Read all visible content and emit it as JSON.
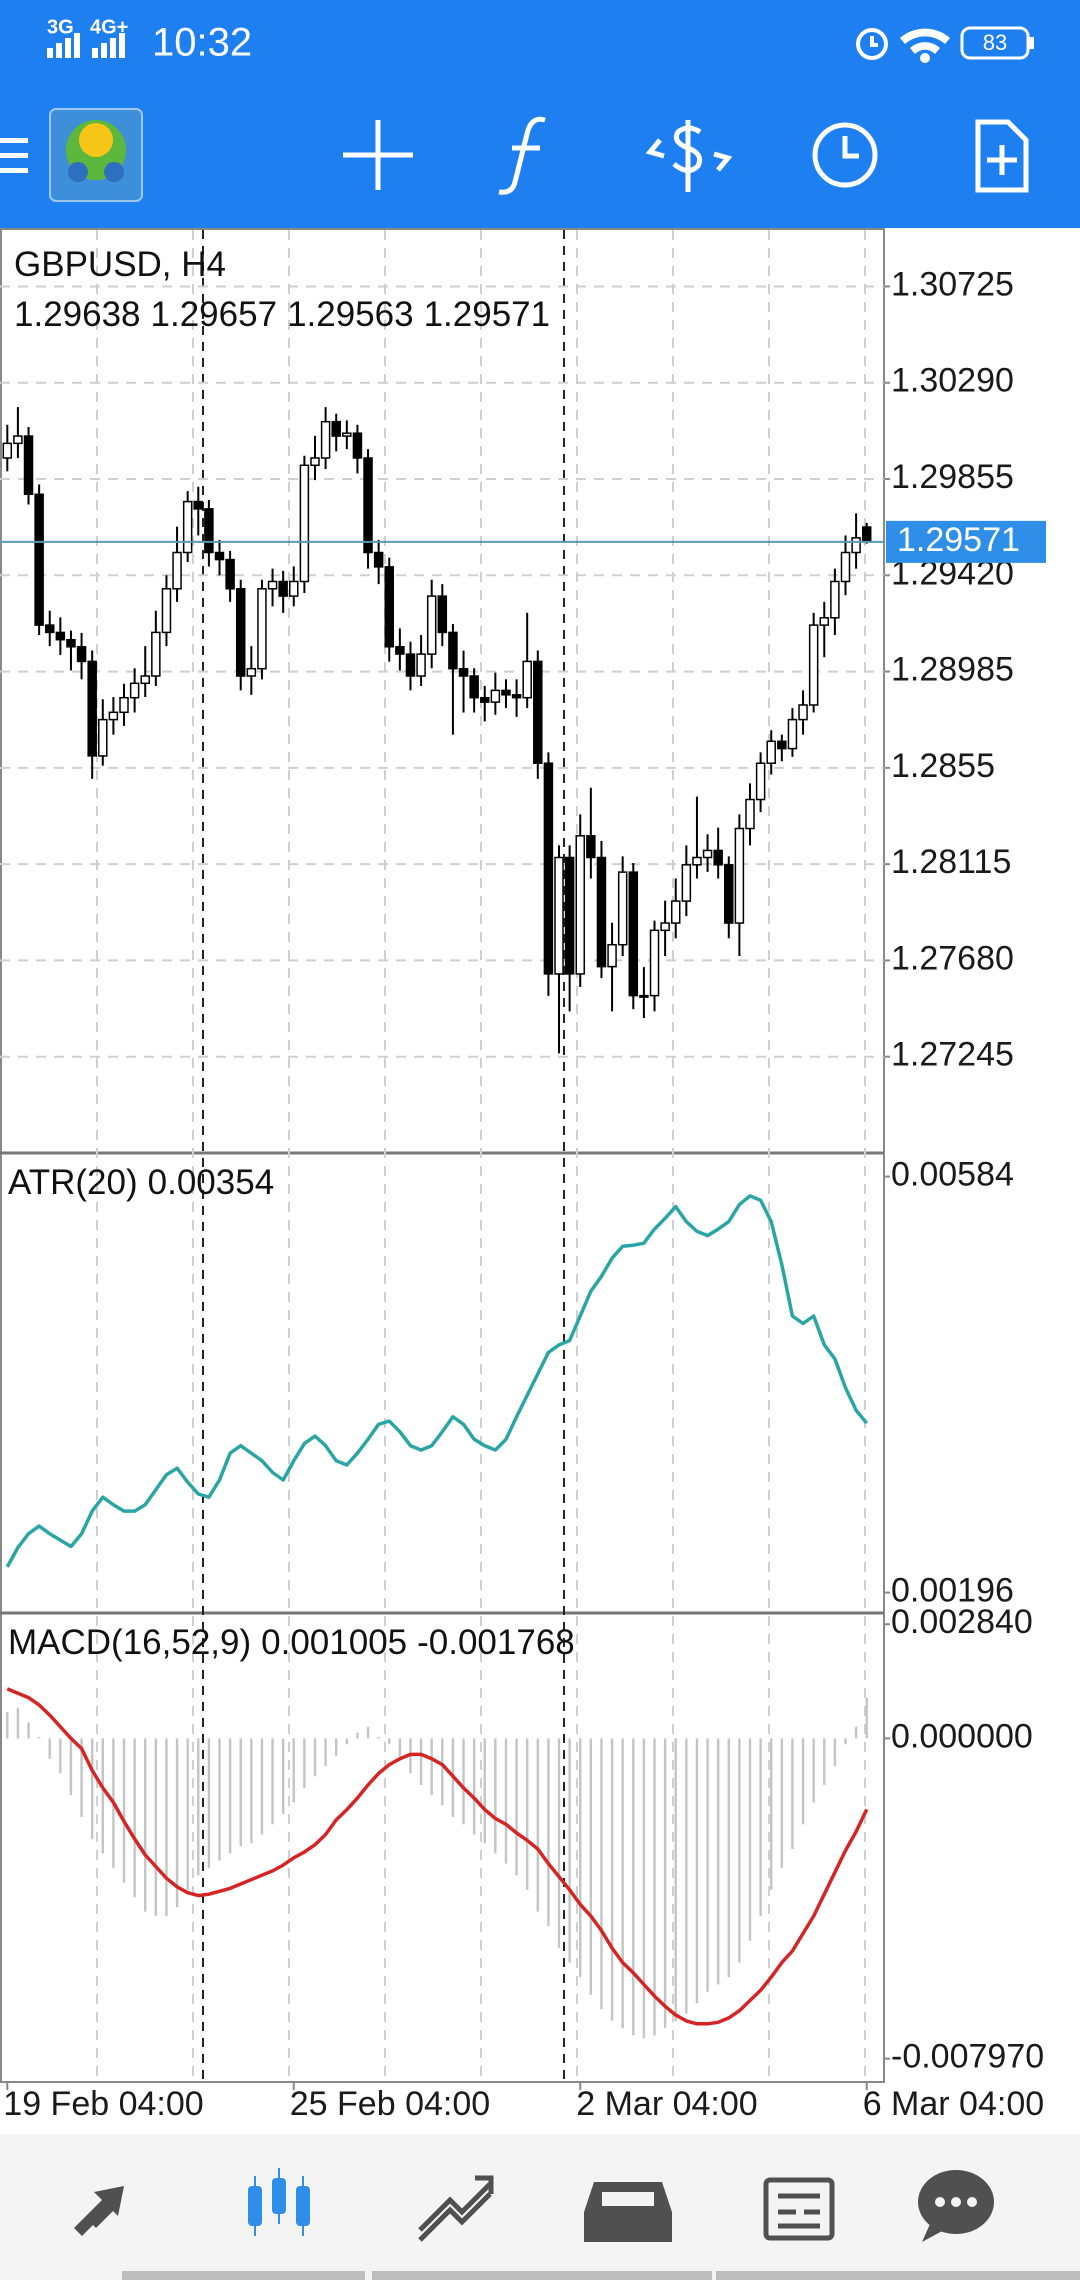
{
  "status_bar": {
    "network": [
      "3G",
      "4G+"
    ],
    "time": "10:32",
    "battery": "83"
  },
  "chart_data": [
    {
      "type": "candlestick",
      "title": "GBPUSD, H4",
      "categories": [
        "19 Feb 04:00",
        null,
        null,
        null,
        null,
        null,
        null,
        null,
        null,
        null,
        null,
        null,
        null,
        null,
        null,
        null,
        null,
        null,
        null,
        null,
        null,
        null,
        null,
        null,
        null,
        null,
        null,
        "25 Feb 04:00",
        null,
        null,
        null,
        null,
        null,
        null,
        null,
        null,
        null,
        null,
        null,
        null,
        null,
        null,
        null,
        null,
        null,
        null,
        null,
        null,
        null,
        null,
        null,
        null,
        null,
        null,
        "2 Mar 04:00",
        null,
        null,
        null,
        null,
        null,
        null,
        null,
        null,
        null,
        null,
        null,
        null,
        null,
        null,
        null,
        null,
        null,
        null,
        null,
        null,
        null,
        null,
        null,
        null,
        null,
        null,
        "6 Mar 04:00"
      ],
      "open": [
        1.2995,
        1.30016,
        1.30049,
        1.29786,
        1.29195,
        1.29162,
        1.29129,
        1.29097,
        1.29031,
        1.28604,
        1.28768,
        1.28801,
        1.28867,
        1.28932,
        1.28965,
        1.29162,
        1.29359,
        1.29523,
        1.29753,
        1.2972,
        1.29523,
        1.29491,
        1.29359,
        1.28965,
        1.28998,
        1.29359,
        1.29392,
        1.29326,
        1.29392,
        1.29917,
        1.2995,
        1.30114,
        1.30049,
        1.30062,
        1.2995,
        1.29523,
        1.29458,
        1.29097,
        1.29064,
        1.28965,
        1.29064,
        1.29326,
        1.29162,
        1.28998,
        1.28965,
        1.28867,
        1.28847,
        1.289,
        1.2888,
        1.28867,
        1.29031,
        1.28571,
        1.27619,
        1.28145,
        1.27619,
        1.28243,
        1.28145,
        1.27652,
        1.27751,
        1.28079,
        1.27521,
        1.27521,
        1.27816,
        1.27849,
        1.27948,
        1.28112,
        1.28145,
        1.28177,
        1.28112,
        1.27849,
        1.28276,
        1.28407,
        1.28571,
        1.2867,
        1.28637,
        1.28768,
        1.28834,
        1.29195,
        1.29228,
        1.29392,
        1.29523,
        1.29638
      ],
      "high": [
        1.301,
        1.3018,
        1.3009,
        1.2983,
        1.2926,
        1.2923,
        1.2917,
        1.2916,
        1.2908,
        1.2886,
        1.2887,
        1.2893,
        1.29,
        1.291,
        1.2926,
        1.2942,
        1.2964,
        1.298,
        1.2982,
        1.2976,
        1.2958,
        1.2953,
        1.294,
        1.291,
        1.294,
        1.2945,
        1.2944,
        1.2946,
        1.2996,
        1.3005,
        1.3018,
        1.3015,
        1.3012,
        1.301,
        1.2999,
        1.2958,
        1.295,
        1.2918,
        1.2912,
        1.2915,
        1.294,
        1.2938,
        1.292,
        1.2908,
        1.29,
        1.2892,
        1.2898,
        1.2895,
        1.2895,
        1.2925,
        1.2908,
        1.2862,
        1.282,
        1.282,
        1.2834,
        1.2846,
        1.2822,
        1.2785,
        1.2815,
        1.2812,
        1.2765,
        1.2786,
        1.2795,
        1.2805,
        1.282,
        1.2842,
        1.2825,
        1.2828,
        1.2815,
        1.2834,
        1.2848,
        1.2862,
        1.2872,
        1.287,
        1.2882,
        1.289,
        1.2925,
        1.293,
        1.2945,
        1.296,
        1.297,
        1.29657
      ],
      "low": [
        1.2989,
        1.2995,
        1.2974,
        1.2915,
        1.291,
        1.2906,
        1.2899,
        1.2895,
        1.285,
        1.2856,
        1.287,
        1.2874,
        1.288,
        1.2887,
        1.2892,
        1.291,
        1.293,
        1.2948,
        1.296,
        1.2946,
        1.2942,
        1.293,
        1.289,
        1.2888,
        1.2895,
        1.2928,
        1.2925,
        1.2928,
        1.2934,
        1.2985,
        1.299,
        1.2998,
        1.2999,
        1.2988,
        1.2945,
        1.2938,
        1.2903,
        1.2899,
        1.289,
        1.2892,
        1.29,
        1.291,
        1.287,
        1.288,
        1.288,
        1.2876,
        1.2879,
        1.2882,
        1.2878,
        1.2882,
        1.285,
        1.2752,
        1.2726,
        1.2745,
        1.2756,
        1.2805,
        1.276,
        1.2745,
        1.277,
        1.2746,
        1.2742,
        1.2745,
        1.277,
        1.2778,
        1.2788,
        1.2805,
        1.2808,
        1.2805,
        1.2778,
        1.277,
        1.282,
        1.2835,
        1.2852,
        1.2858,
        1.286,
        1.287,
        1.288,
        1.2905,
        1.2915,
        1.2933,
        1.2945,
        1.29563
      ],
      "close": [
        1.30016,
        1.30049,
        1.29786,
        1.29195,
        1.29162,
        1.29129,
        1.29097,
        1.29031,
        1.28604,
        1.28768,
        1.28801,
        1.28867,
        1.28932,
        1.28965,
        1.29162,
        1.29359,
        1.29523,
        1.29753,
        1.2972,
        1.29523,
        1.29491,
        1.29359,
        1.28965,
        1.28998,
        1.29359,
        1.29392,
        1.29326,
        1.29392,
        1.29917,
        1.2995,
        1.30114,
        1.30049,
        1.30062,
        1.2995,
        1.29523,
        1.29458,
        1.29097,
        1.29064,
        1.28965,
        1.29064,
        1.29326,
        1.29162,
        1.28998,
        1.28965,
        1.28867,
        1.28847,
        1.289,
        1.2888,
        1.28867,
        1.29031,
        1.28571,
        1.27619,
        1.28145,
        1.27619,
        1.28243,
        1.28145,
        1.27652,
        1.27751,
        1.28079,
        1.27521,
        1.27521,
        1.27816,
        1.27849,
        1.27948,
        1.28112,
        1.28145,
        1.28177,
        1.28112,
        1.27849,
        1.28276,
        1.28407,
        1.28571,
        1.2867,
        1.28637,
        1.28768,
        1.28834,
        1.29195,
        1.29228,
        1.29392,
        1.29523,
        1.29589,
        1.29571
      ],
      "up_color": "#ffffff",
      "down_color": "#000000",
      "price_line_color": "#5a9ab8",
      "price_label_color": "#2f8fe8",
      "ylim": [
        1.2681,
        1.3098
      ],
      "yticks": [
        1.30725,
        {
          "value": 1.3029,
          "label": "1.30290"
        },
        1.29855,
        {
          "value": 1.2942,
          "label": "1.29420"
        },
        1.28985,
        1.2855,
        1.28115,
        {
          "value": 1.2768,
          "label": "1.27680"
        },
        1.27245
      ],
      "grid": true
    },
    {
      "type": "line",
      "title": "ATR(20)",
      "color": "#2aa5a5",
      "values": [
        0.0022,
        0.00238,
        0.00251,
        0.00258,
        0.00251,
        0.00245,
        0.00239,
        0.00251,
        0.00272,
        0.00285,
        0.00278,
        0.00272,
        0.00272,
        0.00278,
        0.00292,
        0.00306,
        0.00312,
        0.00299,
        0.00288,
        0.00285,
        0.00301,
        0.00326,
        0.00333,
        0.00326,
        0.00319,
        0.00308,
        0.00301,
        0.00319,
        0.00335,
        0.00342,
        0.00333,
        0.00319,
        0.00315,
        0.00326,
        0.00339,
        0.00353,
        0.00356,
        0.00346,
        0.00333,
        0.00329,
        0.00333,
        0.00346,
        0.0036,
        0.00353,
        0.00339,
        0.00333,
        0.00329,
        0.00339,
        0.0036,
        0.0038,
        0.004,
        0.0042,
        0.00427,
        0.00431,
        0.00454,
        0.00477,
        0.00491,
        0.00508,
        0.00519,
        0.0052,
        0.00522,
        0.00535,
        0.00545,
        0.00556,
        0.00542,
        0.00533,
        0.00529,
        0.00535,
        0.00542,
        0.00558,
        0.00566,
        0.00562,
        0.00542,
        0.00502,
        0.00454,
        0.00447,
        0.00454,
        0.00427,
        0.00414,
        0.00387,
        0.00366,
        0.00354
      ],
      "ylim": [
        0.00177,
        0.00606
      ],
      "yticks": [
        0.00584,
        0.00196
      ],
      "grid": false
    },
    {
      "type": "combo",
      "title": "MACD(16,52,9)",
      "histogram": {
        "color": "#c4c4c4",
        "values": [
          0.000652,
          0.000761,
          0.000399,
          3.6e-05,
          -0.000507,
          -0.00087,
          -0.001413,
          -0.001956,
          -0.0025,
          -0.002862,
          -0.003224,
          -0.003587,
          -0.003949,
          -0.004311,
          -0.00442,
          -0.00442,
          -0.004203,
          -0.003768,
          -0.003406,
          -0.003224,
          -0.003043,
          -0.002862,
          -0.002681,
          -0.002609,
          -0.002391,
          -0.002138,
          -0.001884,
          -0.001594,
          -0.001232,
          -0.000942,
          -0.000688,
          -0.000435,
          -0.000145,
          0.000145,
          0.00029,
          3.6e-05,
          -0.000145,
          -0.000507,
          -0.00087,
          -0.001159,
          -0.001413,
          -0.001667,
          -0.001956,
          -0.002138,
          -0.002391,
          -0.002609,
          -0.002862,
          -0.003116,
          -0.003406,
          -0.003768,
          -0.004311,
          -0.004674,
          -0.005217,
          -0.005579,
          -0.005942,
          -0.006376,
          -0.006739,
          -0.007029,
          -0.00721,
          -0.007391,
          -0.007463,
          -0.007391,
          -0.00721,
          -0.007029,
          -0.006847,
          -0.006594,
          -0.006304,
          -0.006123,
          -0.005942,
          -0.005579,
          -0.005036,
          -0.00442,
          -0.003768,
          -0.003224,
          -0.002753,
          -0.002138,
          -0.001594,
          -0.001159,
          -0.000688,
          -0.000145,
          0.00029,
          0.001005
        ]
      },
      "signal": {
        "color": "#d42424",
        "values": [
          0.001232,
          0.001123,
          0.001014,
          0.000833,
          0.00058,
          0.00029,
          0,
          -0.000254,
          -0.000797,
          -0.001232,
          -0.001594,
          -0.002065,
          -0.0025,
          -0.002898,
          -0.003188,
          -0.003478,
          -0.003695,
          -0.00384,
          -0.003913,
          -0.003877,
          -0.003804,
          -0.003732,
          -0.003623,
          -0.003514,
          -0.003406,
          -0.003297,
          -0.003152,
          -0.002971,
          -0.002826,
          -0.002645,
          -0.002391,
          -0.002029,
          -0.001775,
          -0.001485,
          -0.001159,
          -0.00087,
          -0.000652,
          -0.000507,
          -0.000399,
          -0.000399,
          -0.000507,
          -0.000652,
          -0.000942,
          -0.001232,
          -0.001485,
          -0.001775,
          -0.001993,
          -0.002138,
          -0.002355,
          -0.002536,
          -0.002753,
          -0.003116,
          -0.003442,
          -0.003768,
          -0.00413,
          -0.00442,
          -0.004782,
          -0.005217,
          -0.005579,
          -0.005833,
          -0.006123,
          -0.006413,
          -0.006666,
          -0.006884,
          -0.007029,
          -0.007101,
          -0.007101,
          -0.007065,
          -0.006956,
          -0.006775,
          -0.006521,
          -0.006268,
          -0.005942,
          -0.005579,
          -0.00529,
          -0.004855,
          -0.00442,
          -0.003877,
          -0.003333,
          -0.00279,
          -0.002319,
          -0.001768
        ]
      },
      "ylim": [
        -0.00855,
        0.00312
      ],
      "yticks": [
        {
          "value": 0.00284,
          "label": "0.002840"
        },
        {
          "value": 0,
          "label": "0.000000"
        },
        {
          "value": -0.00797,
          "label": "-0.007970"
        }
      ],
      "grid": false
    }
  ]
}
